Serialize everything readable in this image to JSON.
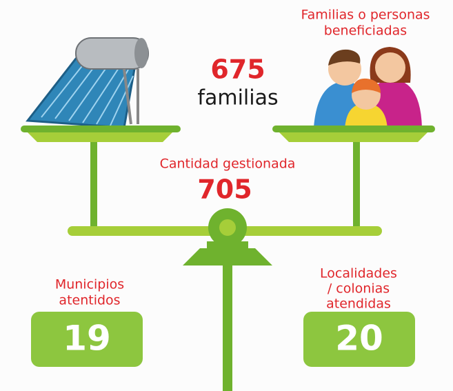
{
  "beneficiaries": {
    "label_lines": [
      "Familias o personas",
      "beneficiadas"
    ],
    "value": "675",
    "unit": "familias"
  },
  "managed": {
    "label": "Cantidad gestionada",
    "value": "705"
  },
  "municipalities": {
    "label_lines": [
      "Municipios",
      "atentidos"
    ],
    "value": "19"
  },
  "localities": {
    "label_lines": [
      "Localidades",
      "/ colonias",
      "atendidas"
    ],
    "value": "20"
  }
}
